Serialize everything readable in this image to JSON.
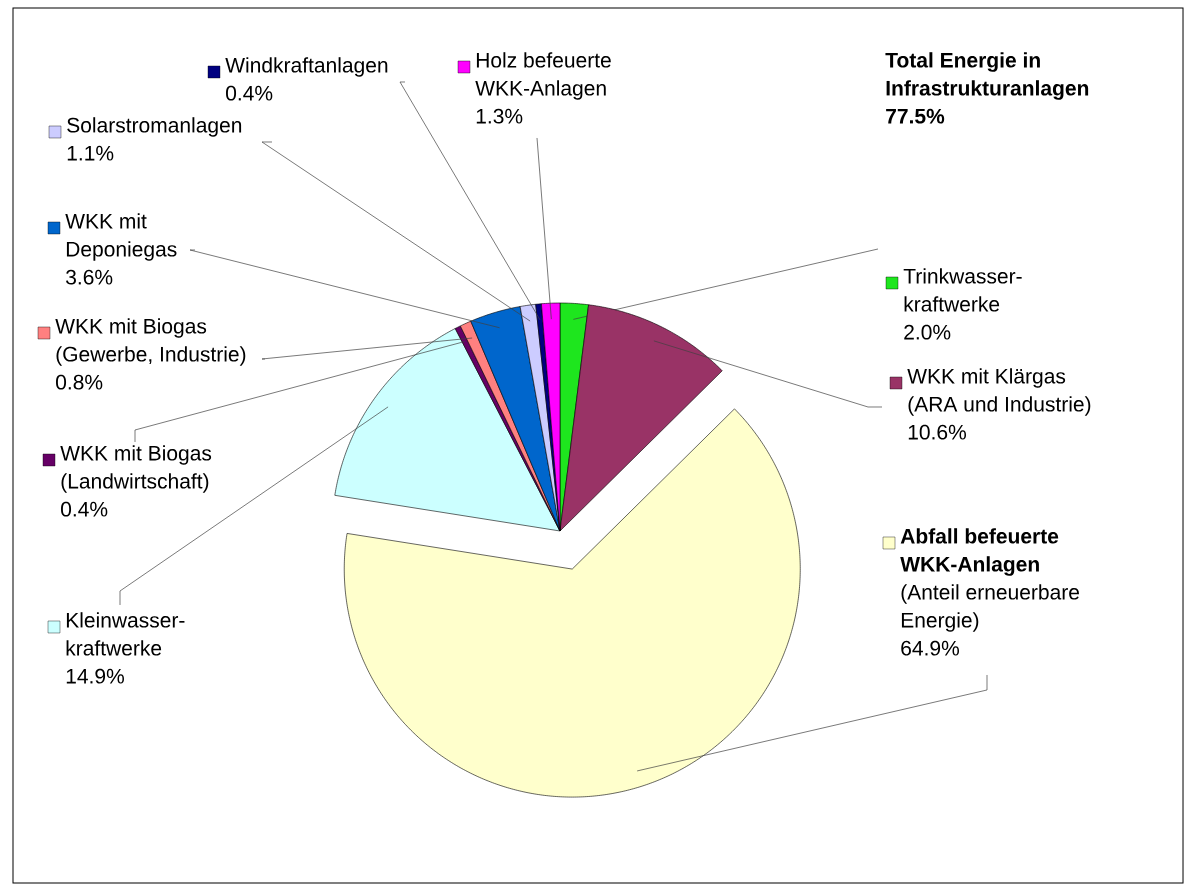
{
  "chart_data": {
    "type": "pie",
    "categories": [
      "Trinkwasser-kraftwerke",
      "WKK mit Klärgas (ARA und Industrie)",
      "**Abfall befeuerte WKK-Anlagen** (Anteil erneuerbare Energie)",
      "Kleinwasser-kraftwerke",
      "WKK mit Biogas (Landwirtschaft)",
      "WKK mit Biogas (Gewerbe, Industrie)",
      "WKK mit Deponiegas",
      "Solarstromanlagen",
      "Windkraftanlagen",
      "Holz befeuerte WKK-Anlagen"
    ],
    "values": [
      2.0,
      10.6,
      64.9,
      14.9,
      0.4,
      0.8,
      3.6,
      1.1,
      0.4,
      1.3
    ],
    "value_labels": [
      "2.0%",
      "10.6%",
      "64.9%",
      "14.9%",
      "0.4%",
      "0.8%",
      "3.6%",
      "1.1%",
      "0.4%",
      "1.3%"
    ],
    "colors": [
      "#1ee61e",
      "#993366",
      "#ffffcc",
      "#ccffff",
      "#660066",
      "#ff8080",
      "#0066cc",
      "#ccccff",
      "#000080",
      "#ff00ff"
    ],
    "legend": "left",
    "annotations": [
      "Total Energie in Infrastrukturanlagen 77.5%"
    ]
  }
}
